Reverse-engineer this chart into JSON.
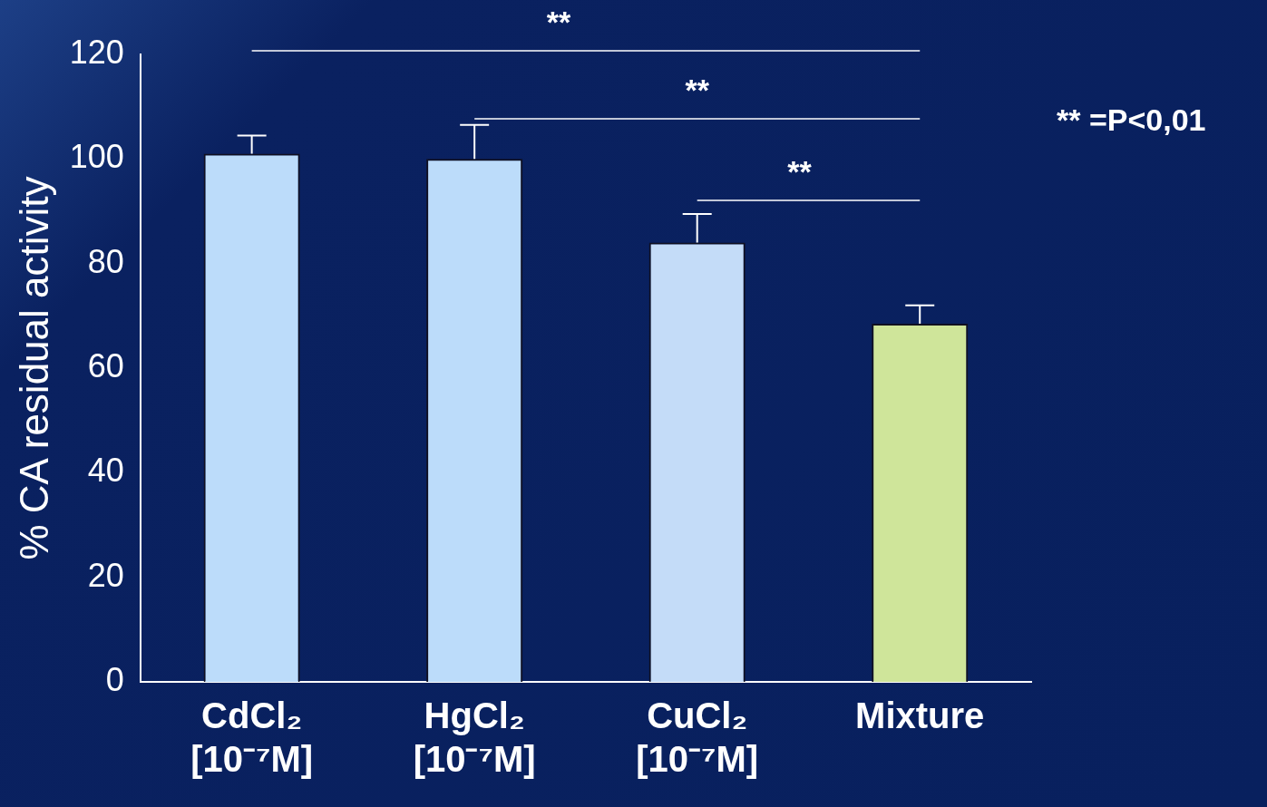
{
  "chart_data": {
    "type": "bar",
    "categories": [
      "CdCl₂\n[10⁻⁷M]",
      "HgCl₂\n[10⁻⁷M]",
      "CuCl₂\n[10⁻⁷M]",
      "Mixture"
    ],
    "values": [
      101,
      100,
      84,
      68.5
    ],
    "colors": [
      "#bcdcfa",
      "#bcdcfa",
      "#c4dcf8",
      "#cfe59a"
    ],
    "errors": [
      [
        101,
        104.5
      ],
      [
        100,
        106.5
      ],
      [
        84,
        89.5
      ],
      [
        68.5,
        72
      ]
    ],
    "ylabel": "% CA residual activity",
    "ylim": [
      0,
      120
    ],
    "yticks": [
      0,
      20,
      40,
      60,
      80,
      100,
      120
    ],
    "grid": false,
    "legend": false,
    "annotations": [
      "**",
      "**",
      "**",
      "** =P<0,01"
    ]
  }
}
